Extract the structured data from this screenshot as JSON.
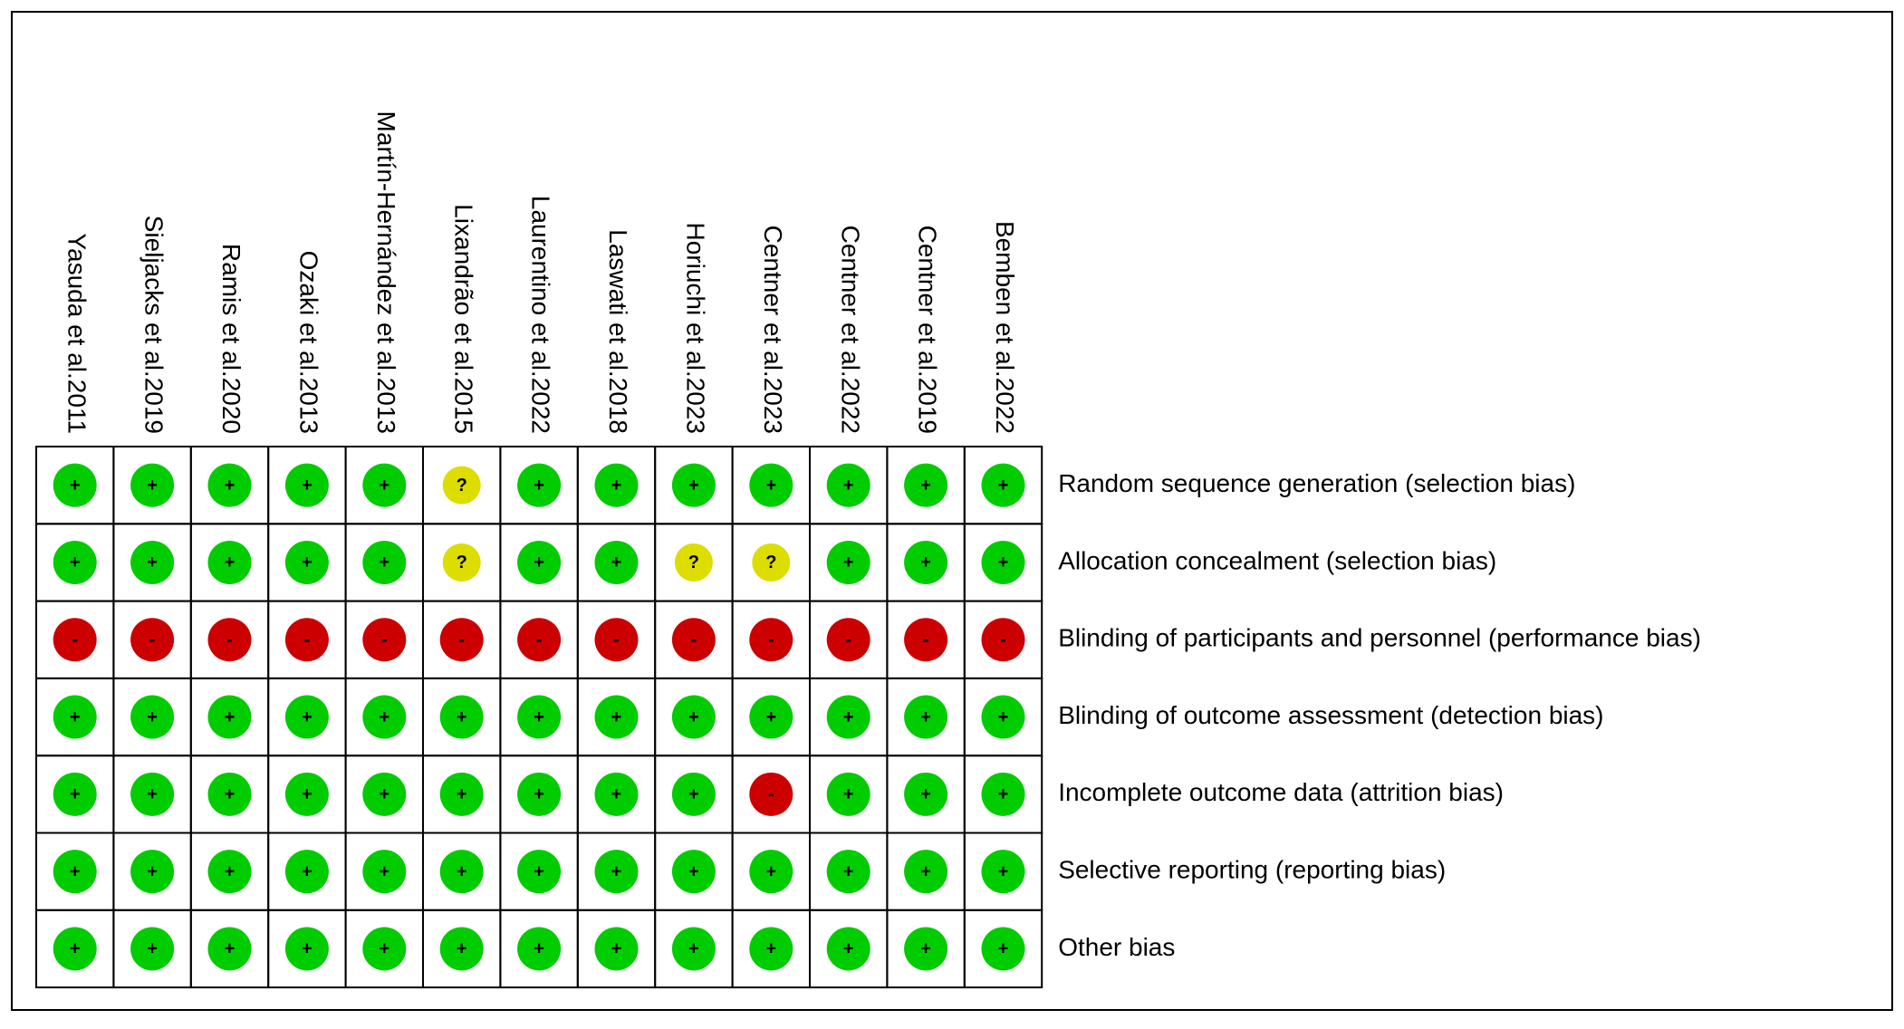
{
  "studies": [
    "Yasuda et al.2011",
    "Sieljacks et al.2019",
    "Ramis et al.2020",
    "Ozaki et al.2013",
    "Martín-Hernández et al.2013",
    "Lixandrão et al.2015",
    "Laurentino et al.2022",
    "Laswati et al.2018",
    "Horiuchi et al.2023",
    "Centner et al.2023",
    "Centner et al.2022",
    "Centner et al.2019",
    "Bemben et al.2022"
  ],
  "domains": [
    "Random sequence generation (selection bias)",
    "Allocation concealment (selection bias)",
    "Blinding of participants and personnel (performance bias)",
    "Blinding of outcome assessment (detection bias)",
    "Incomplete outcome data (attrition bias)",
    "Selective reporting (reporting bias)",
    "Other bias"
  ],
  "judgements": [
    [
      "+",
      "+",
      "+",
      "+",
      "+",
      "?",
      "+",
      "+",
      "+",
      "+",
      "+",
      "+",
      "+"
    ],
    [
      "+",
      "+",
      "+",
      "+",
      "+",
      "?",
      "+",
      "+",
      "?",
      "?",
      "+",
      "+",
      "+"
    ],
    [
      "-",
      "-",
      "-",
      "-",
      "-",
      "-",
      "-",
      "-",
      "-",
      "-",
      "-",
      "-",
      "-"
    ],
    [
      "+",
      "+",
      "+",
      "+",
      "+",
      "+",
      "+",
      "+",
      "+",
      "+",
      "+",
      "+",
      "+"
    ],
    [
      "+",
      "+",
      "+",
      "+",
      "+",
      "+",
      "+",
      "+",
      "+",
      "-",
      "+",
      "+",
      "+"
    ],
    [
      "+",
      "+",
      "+",
      "+",
      "+",
      "+",
      "+",
      "+",
      "+",
      "+",
      "+",
      "+",
      "+"
    ],
    [
      "+",
      "+",
      "+",
      "+",
      "+",
      "+",
      "+",
      "+",
      "+",
      "+",
      "+",
      "+",
      "+"
    ]
  ],
  "symbol_colors": {
    "+": "#00cc00",
    "?": "#dddd00",
    "-": "#cc0000"
  }
}
